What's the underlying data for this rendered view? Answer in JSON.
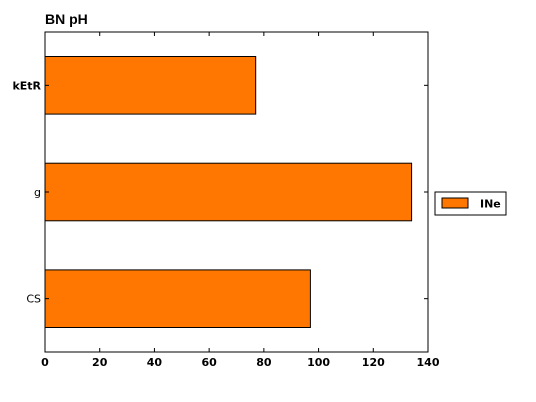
{
  "chart_data": {
    "type": "bar",
    "orientation": "horizontal",
    "title": "BN pH",
    "xlabel": "",
    "ylabel": "",
    "categories": [
      "kEtR",
      "g",
      "CS"
    ],
    "series": [
      {
        "name": "INe",
        "values": [
          77,
          134,
          97
        ]
      }
    ],
    "xlim": [
      0,
      140
    ],
    "x_ticks": [
      "0",
      "20",
      "40",
      "60",
      "80",
      "100",
      "120",
      "140"
    ],
    "grid": false,
    "legend_position": "right",
    "colors": {
      "bar_fill": "#ff7700",
      "bar_stroke": "#000000",
      "axis": "#000000"
    }
  }
}
